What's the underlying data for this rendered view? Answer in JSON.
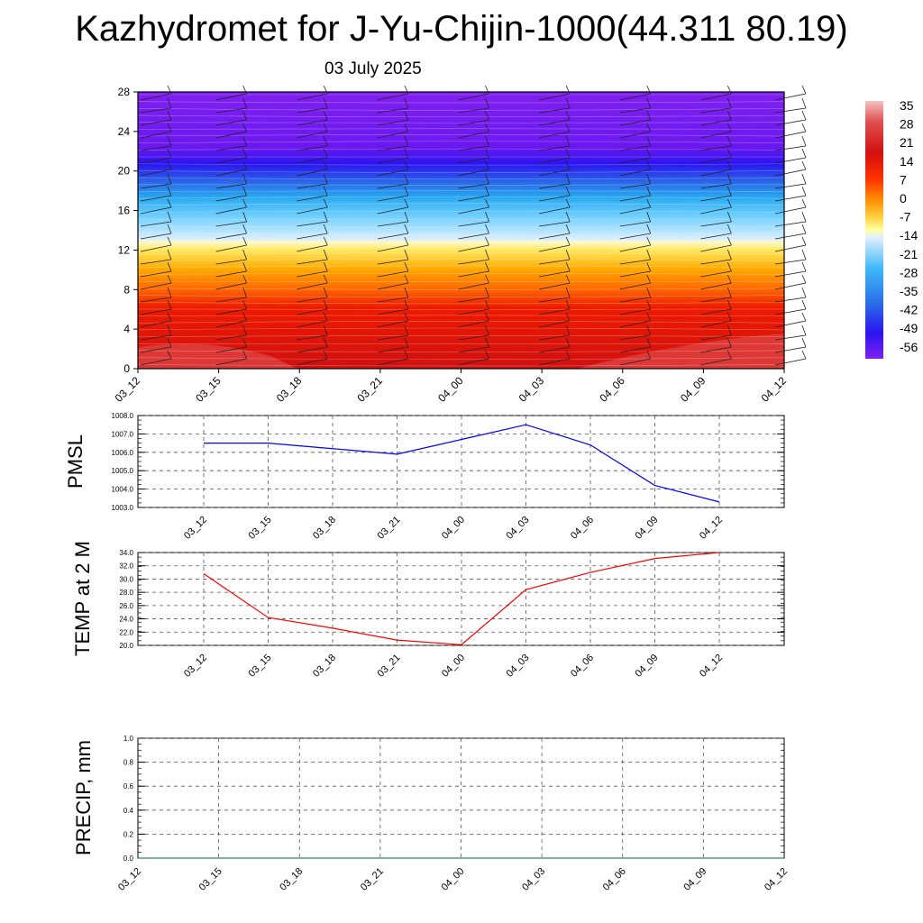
{
  "title": "Kazhydromet for J-Yu-Chijin-1000(44.311 80.19)",
  "subtitle": "03 July 2025",
  "time_labels": [
    "03_12",
    "03_15",
    "03_18",
    "03_21",
    "04_00",
    "04_03",
    "04_06",
    "04_09",
    "04_12"
  ],
  "chart_data": [
    {
      "type": "heatmap",
      "title": "",
      "xlabel": "",
      "ylabel": "",
      "x": [
        "03_12",
        "03_15",
        "03_18",
        "03_21",
        "04_00",
        "04_03",
        "04_06",
        "04_09",
        "04_12"
      ],
      "y_ticks": [
        0,
        4,
        8,
        12,
        16,
        20,
        24,
        28
      ],
      "ylim": [
        0,
        28
      ],
      "colorbar": {
        "labels": [
          "35",
          "28",
          "21",
          "14",
          "7",
          "0",
          "-7",
          "-14",
          "-21",
          "-28",
          "-35",
          "-42",
          "-49",
          "-56"
        ],
        "colors": [
          "#f4b6b6",
          "#e05050",
          "#d10f0f",
          "#ee1a00",
          "#ff6a00",
          "#ffaa00",
          "#ffe860",
          "#e8f4ff",
          "#70d0ff",
          "#28a8f0",
          "#2878e8",
          "#2a48e0",
          "#2a14f0",
          "#7a18f0"
        ]
      },
      "note_overlay": "wind barbs"
    },
    {
      "type": "line",
      "ylabel": "PMSL",
      "categories": [
        "03_12",
        "03_15",
        "03_18",
        "03_21",
        "04_00",
        "04_03",
        "04_06",
        "04_09",
        "04_12"
      ],
      "series": [
        {
          "values": [
            1006.5,
            1006.5,
            1006.2,
            1005.9,
            1006.7,
            1007.5,
            1006.4,
            1004.2,
            1003.3
          ],
          "color": "#0000ff"
        }
      ],
      "y_ticks": [
        "1003.0",
        "1004.0",
        "1005.0",
        "1006.0",
        "1007.0",
        "1008.0"
      ],
      "ylim": [
        1003,
        1008
      ]
    },
    {
      "type": "line",
      "ylabel": "TEMP at 2 M",
      "categories": [
        "03_12",
        "03_15",
        "03_18",
        "03_21",
        "04_00",
        "04_03",
        "04_06",
        "04_09",
        "04_12"
      ],
      "series": [
        {
          "values": [
            30.8,
            24.2,
            22.6,
            20.8,
            20.1,
            28.4,
            31.0,
            33.1,
            34.0
          ],
          "color": "#ff0000"
        }
      ],
      "y_ticks": [
        "20.0",
        "22.0",
        "24.0",
        "26.0",
        "28.0",
        "30.0",
        "32.0",
        "34.0"
      ],
      "ylim": [
        20,
        34
      ]
    },
    {
      "type": "line",
      "ylabel": "PRECIP, mm",
      "categories": [
        "03_12",
        "03_15",
        "03_18",
        "03_21",
        "04_00",
        "04_03",
        "04_06",
        "04_09",
        "04_12"
      ],
      "series": [
        {
          "values": [
            0,
            0,
            0,
            0,
            0,
            0,
            0,
            0,
            0
          ],
          "color": "#2e8b57"
        }
      ],
      "y_ticks": [
        "0.0",
        "0.2",
        "0.4",
        "0.6",
        "0.8",
        "1.0"
      ],
      "ylim": [
        0,
        1
      ]
    }
  ]
}
